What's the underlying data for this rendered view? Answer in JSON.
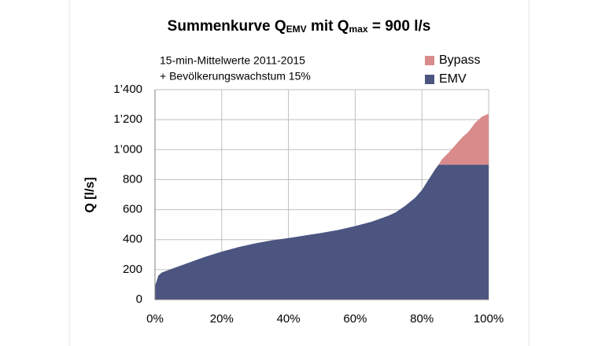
{
  "chart_data": {
    "type": "stacked_area",
    "title": [
      "Summenkurve Q",
      "EMV",
      " mit Q",
      "max",
      " = 900 l/s"
    ],
    "annotation": [
      "15-min-Mittelwerte 2011-2015",
      "+ Bevölkerungswachstum 15%"
    ],
    "y_label": "Q [l/s]",
    "x": [
      0,
      1,
      2,
      5,
      10,
      15,
      20,
      25,
      30,
      35,
      40,
      45,
      50,
      55,
      60,
      65,
      70,
      72,
      75,
      78,
      80,
      82,
      84,
      85,
      86,
      88,
      90,
      92,
      94,
      96,
      98,
      100
    ],
    "series": [
      {
        "name": "EMV",
        "color": "#4b5580",
        "values": [
          90,
          160,
          180,
          205,
          245,
          285,
          320,
          350,
          375,
          395,
          410,
          428,
          445,
          465,
          490,
          520,
          560,
          580,
          625,
          680,
          730,
          800,
          870,
          900,
          900,
          900,
          900,
          900,
          900,
          900,
          900,
          900
        ]
      },
      {
        "name": "Bypass",
        "color": "#d98b8b",
        "values": [
          0,
          0,
          0,
          0,
          0,
          0,
          0,
          0,
          0,
          0,
          0,
          0,
          0,
          0,
          0,
          0,
          0,
          0,
          0,
          0,
          0,
          0,
          0,
          0,
          35,
          80,
          130,
          180,
          220,
          280,
          320,
          340
        ]
      }
    ],
    "xlim": [
      0,
      100
    ],
    "xticks": [
      {
        "value": 0,
        "label": "0%"
      },
      {
        "value": 20,
        "label": "20%"
      },
      {
        "value": 40,
        "label": "40%"
      },
      {
        "value": 60,
        "label": "60%"
      },
      {
        "value": 80,
        "label": "80%"
      },
      {
        "value": 100,
        "label": "100%"
      }
    ],
    "ylim": [
      0,
      1400
    ],
    "yticks": [
      0,
      200,
      400,
      600,
      800,
      {
        "value": 1000,
        "label": "1’000"
      },
      {
        "value": 1200,
        "label": "1’200"
      },
      {
        "value": 1400,
        "label": "1’400"
      }
    ],
    "grid": true
  }
}
